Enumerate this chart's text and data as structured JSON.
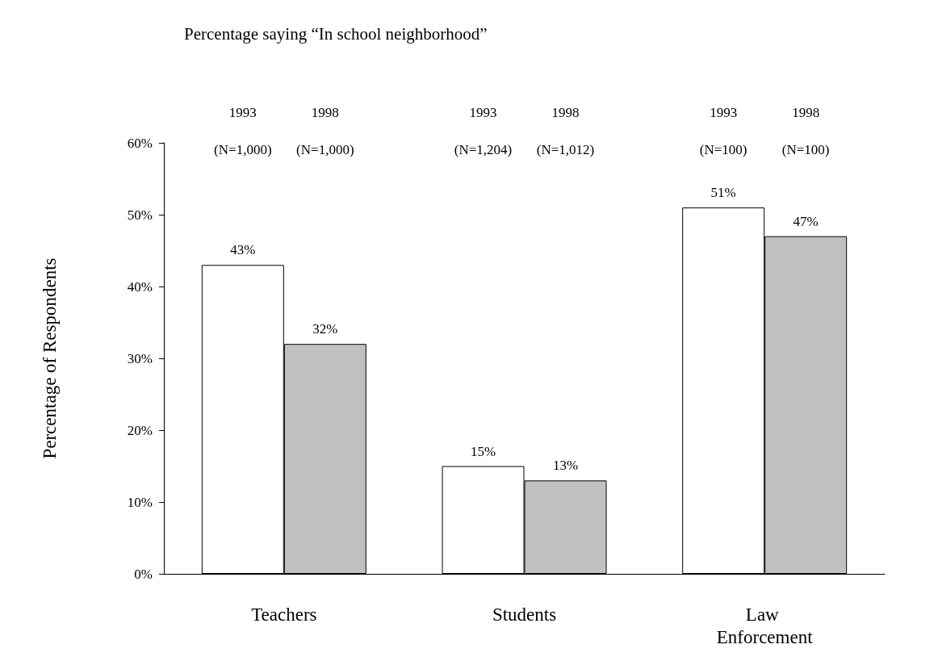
{
  "chart_data": {
    "type": "bar",
    "title": "Percentage saying “In school neighborhood”",
    "ylabel": "Percentage of Respondents",
    "categories": [
      "Teachers",
      "Students",
      "Law Enforcement"
    ],
    "series": [
      {
        "color": "#ffffff",
        "values": [
          43,
          15,
          51
        ],
        "value_labels": [
          "43%",
          "15%",
          "51%"
        ]
      },
      {
        "color": "#c0c0c0",
        "values": [
          32,
          13,
          47
        ],
        "value_labels": [
          "32%",
          "13%",
          "47%"
        ]
      }
    ],
    "ylim": [
      0,
      60
    ],
    "yticks": [
      {
        "value": 0,
        "label": "0%"
      },
      {
        "value": 10,
        "label": "10%"
      },
      {
        "value": 20,
        "label": "20%"
      },
      {
        "value": 30,
        "label": "30%"
      },
      {
        "value": 40,
        "label": "40%"
      },
      {
        "value": 50,
        "label": "50%"
      },
      {
        "value": 60,
        "label": "60%"
      }
    ],
    "annotations": [
      "1993\n(N=1,000)",
      "1998\n(N=1,000)",
      "1993\n(N=1,204)",
      "1998\n(N=1,012)",
      "1993\n(N=100)",
      "1998\n(N=100)"
    ],
    "grid": false
  }
}
